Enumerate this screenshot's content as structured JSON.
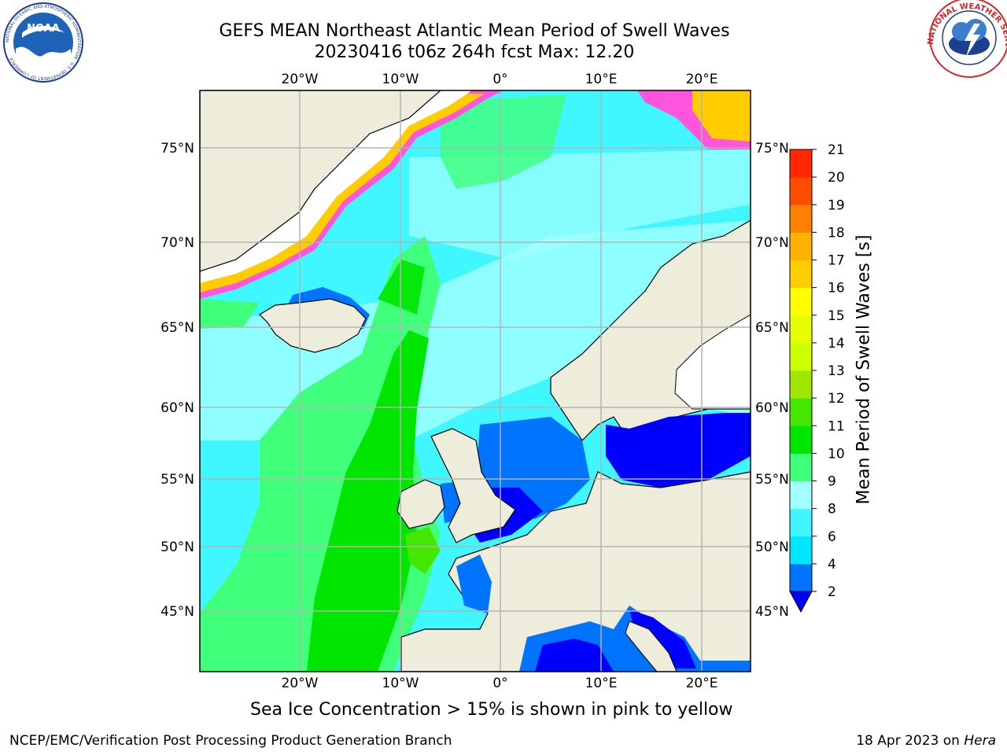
{
  "header": {
    "title_line1": "GEFS MEAN Northeast Atlantic Mean Period of Swell Waves",
    "title_line2": "20230416 t06z 264h fcst   Max: 12.20"
  },
  "logos": {
    "noaa_text": "NOAA",
    "noaa_ring_text": "NATIONAL OCEANIC AND ATMOSPHERIC ADMINISTRATION · U.S. DEPARTMENT OF COMMERCE",
    "nws_ring_text": "NATIONAL WEATHER SERVICE"
  },
  "map": {
    "lon_labels": [
      "20°W",
      "10°W",
      "0°",
      "10°E",
      "20°E"
    ],
    "lat_labels": [
      "75°N",
      "70°N",
      "65°N",
      "60°N",
      "55°N",
      "50°N",
      "45°N"
    ],
    "colors": {
      "land": "#eeecdb",
      "grid": "#b3b3b3",
      "coast": "#000000"
    }
  },
  "colorbar": {
    "title": "Mean Period of Swell Waves [s]",
    "ticks": [
      "2",
      "4",
      "6",
      "8",
      "9",
      "10",
      "11",
      "12",
      "13",
      "14",
      "15",
      "16",
      "17",
      "18",
      "19",
      "20",
      "21"
    ],
    "colors": [
      "#0000ff",
      "#0073ff",
      "#00e6ff",
      "#40f7ff",
      "#a3ffff",
      "#40ff7a",
      "#00e600",
      "#45e600",
      "#9fe600",
      "#ccff00",
      "#e6ff00",
      "#ffff00",
      "#ffcc00",
      "#ffb300",
      "#ff8000",
      "#ff4d00",
      "#ff2600",
      "#ff0000"
    ]
  },
  "footer": {
    "ice_note": "Sea Ice Concentration > 15% is shown in pink to yellow",
    "credit": "NCEP/EMC/Verification Post Processing Product Generation Branch",
    "date": "18 Apr 2023 on ",
    "host": "Hera"
  }
}
